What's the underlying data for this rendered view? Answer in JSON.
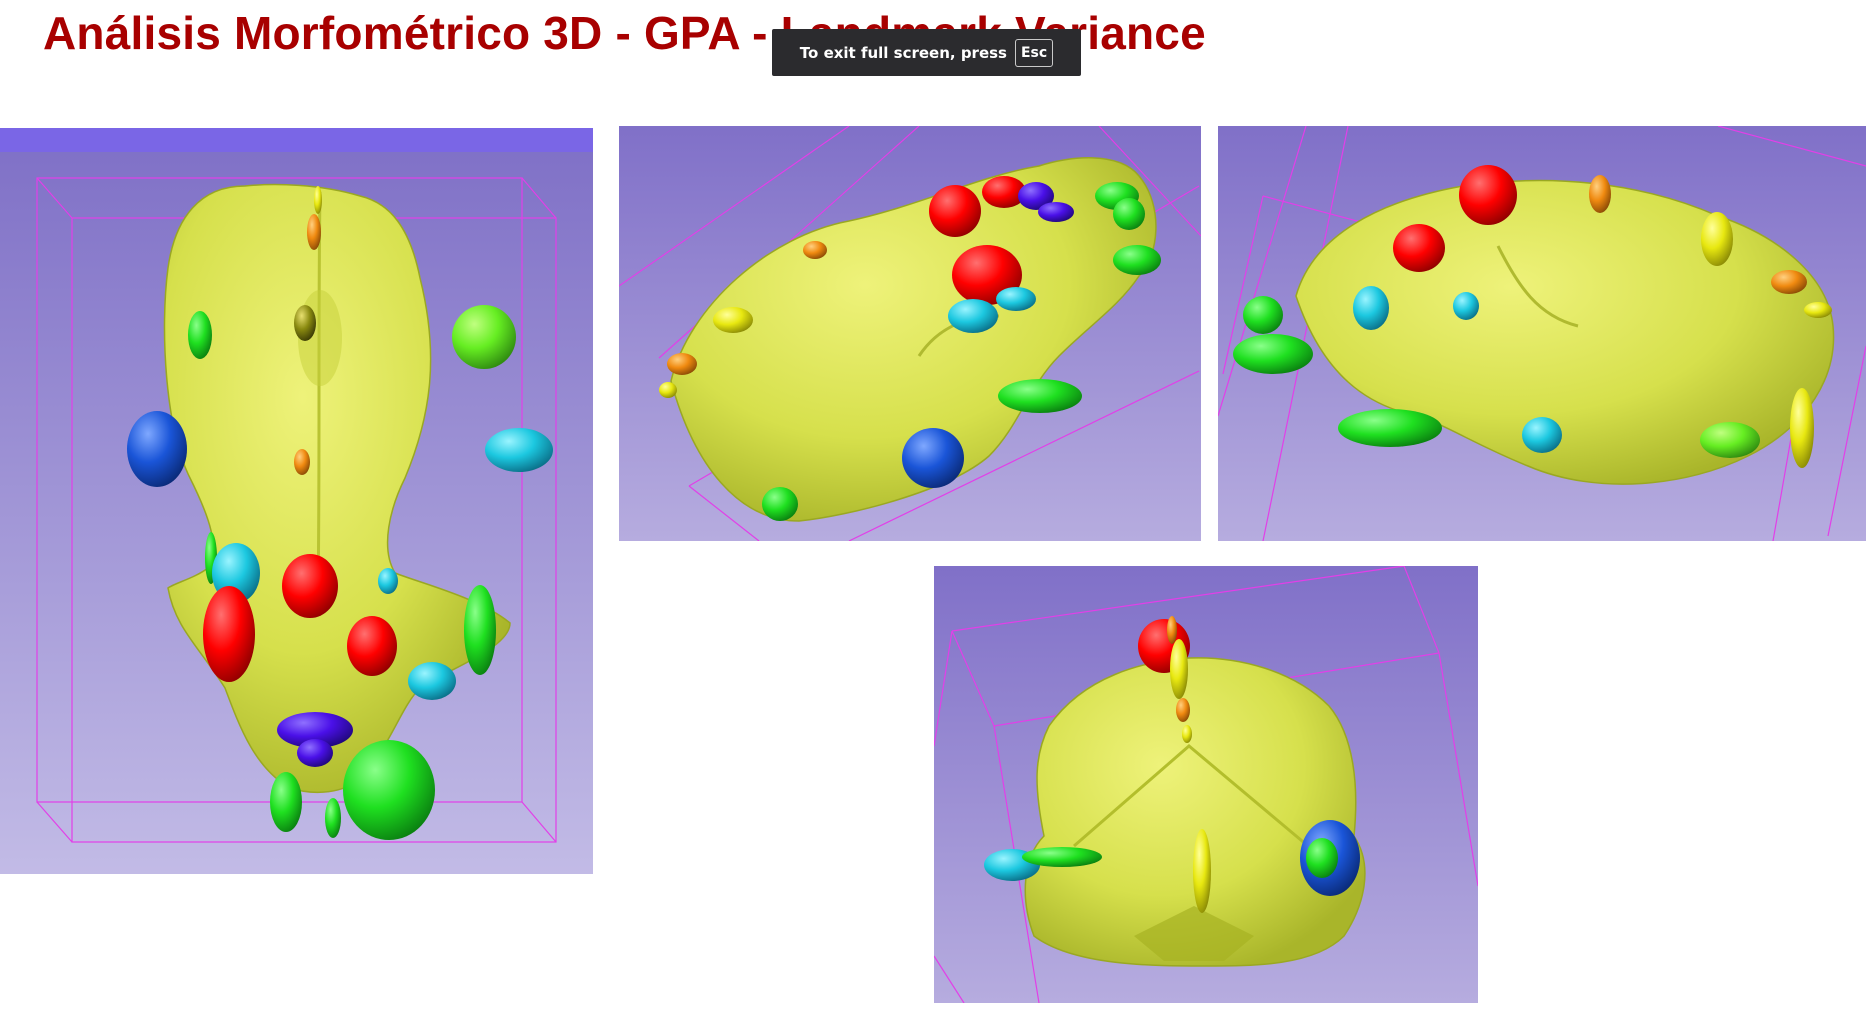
{
  "slide": {
    "title": "Análisis Morfométrico 3D - GPA - Landmark Variance"
  },
  "viewer": {
    "background_top": "#7e6fc6",
    "background_bottom": "#c2bbe6",
    "surface_color": "#dfe85a",
    "bounding_box_color": "#e23fe8",
    "panels": [
      {
        "id": "top",
        "view": "superior"
      },
      {
        "id": "lateral-left",
        "view": "lateral"
      },
      {
        "id": "lateral-right",
        "view": "lateral"
      },
      {
        "id": "posterior",
        "view": "posterior"
      }
    ]
  },
  "fullscreen_notice": {
    "text": "To exit full screen, press",
    "key": "Esc"
  },
  "landmark_colors": {
    "red": "#ff0000",
    "green": "#1fe020",
    "light_green": "#66ee22",
    "cyan": "#1cc8e0",
    "blue": "#1a55d8",
    "violet": "#4a10e8",
    "orange": "#f08a10",
    "yellow": "#e8e810",
    "olive": "#8a8a10"
  }
}
